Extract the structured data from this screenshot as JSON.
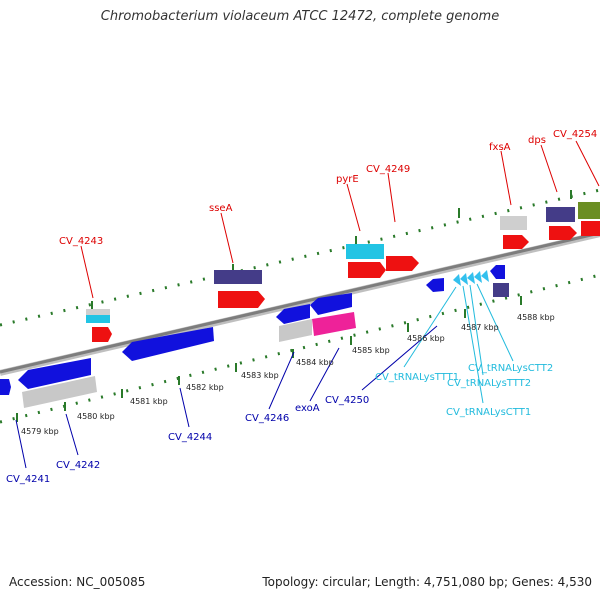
{
  "title": "Chromobacterium violaceum ATCC 12472, complete genome",
  "footer": {
    "accession": "Accession: NC_005085",
    "topology": "Topology: circular; Length: 4,751,080 bp; Genes: 4,530"
  },
  "colors": {
    "forward_label": "#dd0000",
    "reverse_label": "#0000aa",
    "trna_label": "#22bbdd",
    "backbone": "#8a8a8a",
    "tick": "#2a7a2a"
  },
  "kbp_ticks": [
    "4579 kbp",
    "4580 kbp",
    "4581 kbp",
    "4582 kbp",
    "4583 kbp",
    "4584 kbp",
    "4585 kbp",
    "4586 kbp",
    "4587 kbp",
    "4588 kbp"
  ],
  "forward_labels": [
    "CV_4243",
    "sseA",
    "pyrE",
    "CV_4249",
    "fxsA",
    "dps",
    "CV_4254"
  ],
  "reverse_labels": [
    "CV_4241",
    "CV_4242",
    "CV_4244",
    "CV_4246",
    "exoA",
    "CV_4250"
  ],
  "trna_labels": [
    "CV_tRNALysTTT1",
    "CV_tRNALysCTT1",
    "CV_tRNALysTTT2",
    "CV_tRNALysCTT2"
  ]
}
